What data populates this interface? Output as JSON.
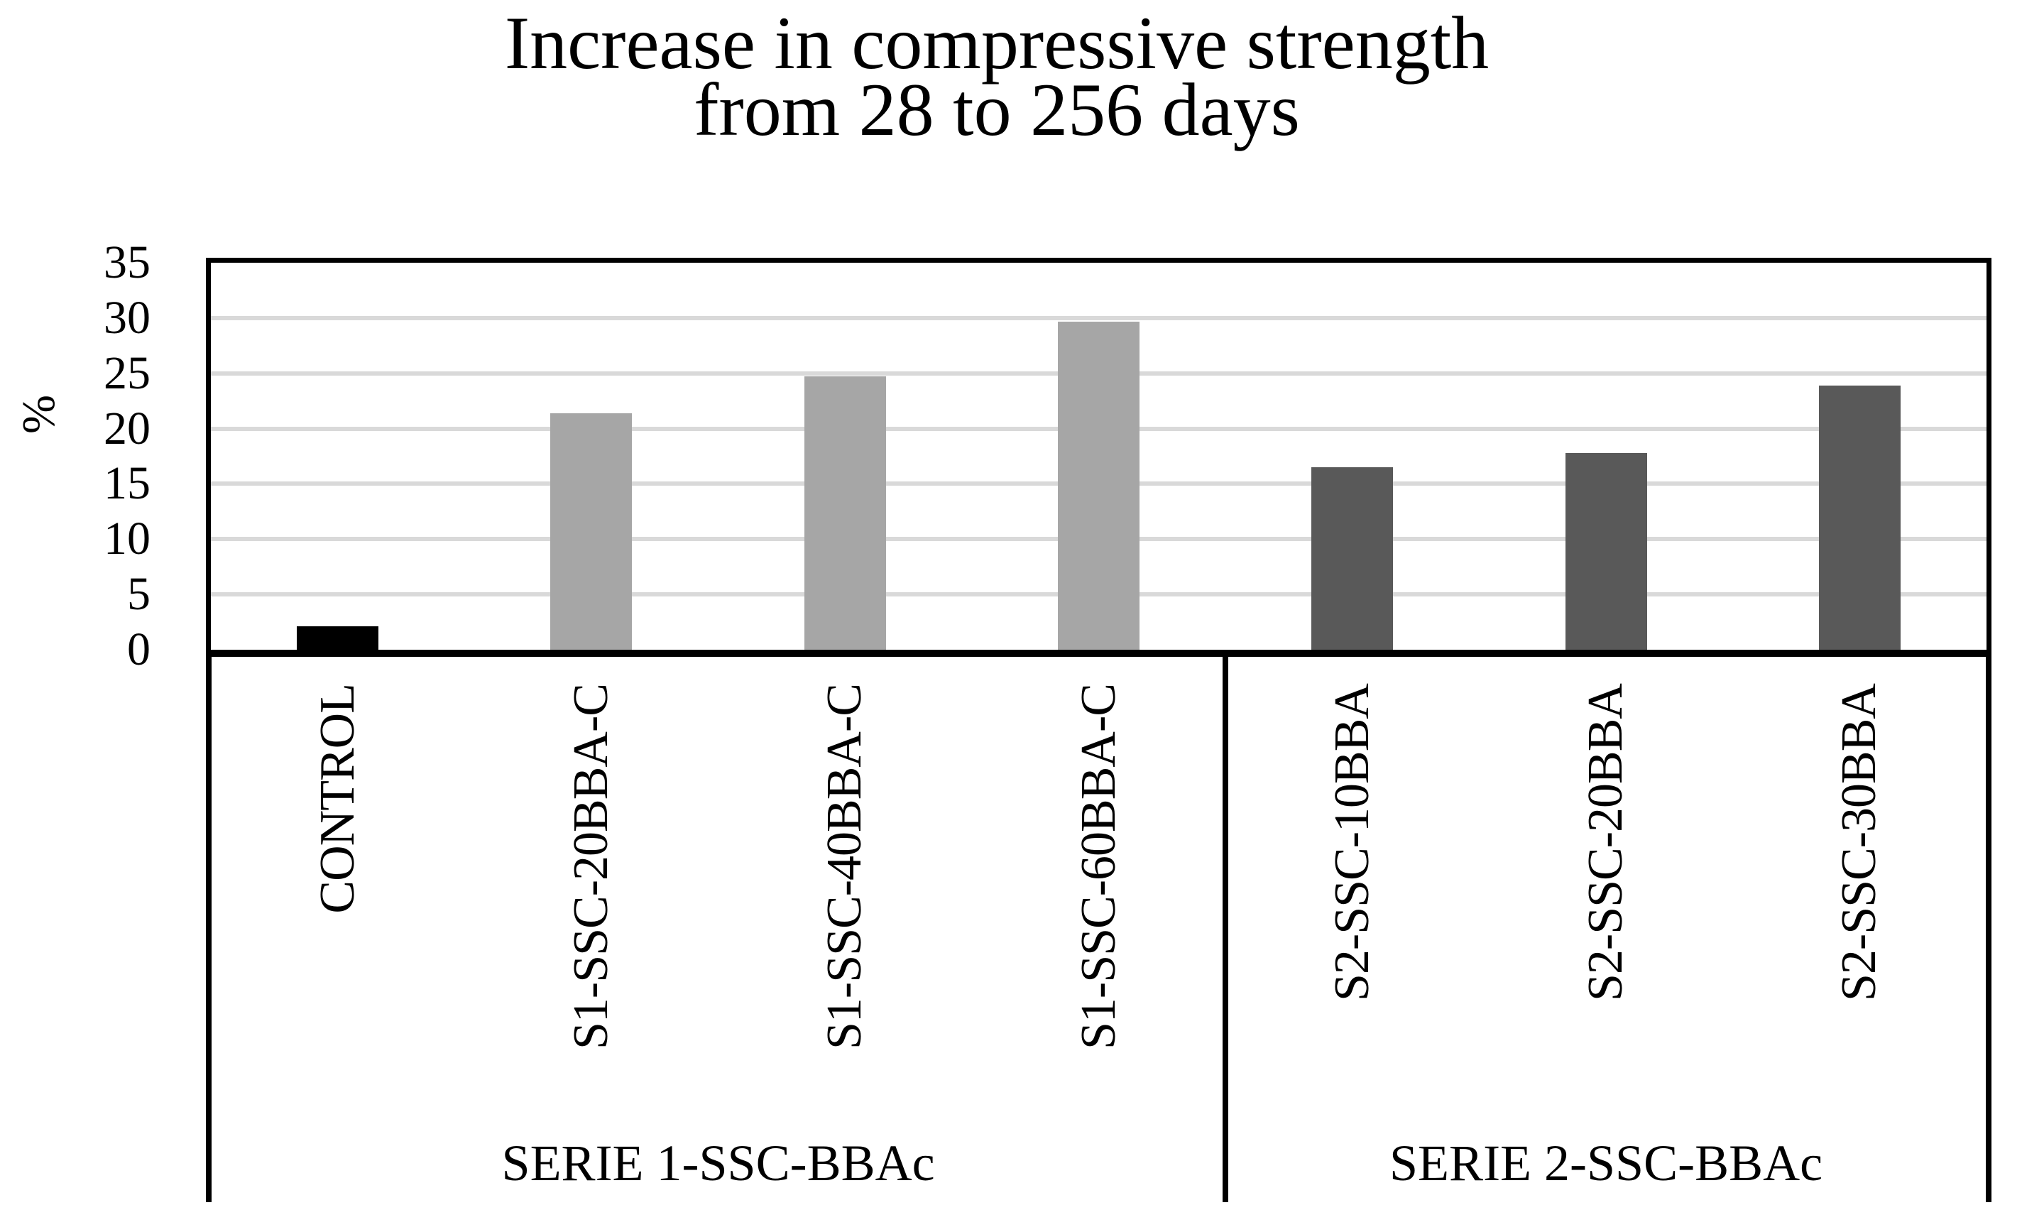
{
  "title": {
    "line1": "Increase in compressive strength",
    "line2": "from 28 to 256 days"
  },
  "y_axis": {
    "label": "%",
    "ticks": [
      35,
      30,
      25,
      20,
      15,
      10,
      5,
      0
    ]
  },
  "chart_data": {
    "type": "bar",
    "title": "Increase in compressive strength from 28 to 256 days",
    "xlabel": "",
    "ylabel": "%",
    "ylim": [
      0,
      35
    ],
    "ytick_step": 5,
    "grid": "horizontal",
    "legend": "none",
    "categories": [
      "CONTROL",
      "S1-SSC-20BBA-C",
      "S1-SSC-40BBA-C",
      "S1-SSC-60BBA-C",
      "S2-SSC-10BBA",
      "S2-SSC-20BBA",
      "S2-SSC-30BBA"
    ],
    "values": [
      2.1,
      21.4,
      24.7,
      29.7,
      16.5,
      17.8,
      23.9
    ],
    "bar_colors": [
      "#000000",
      "#a6a6a6",
      "#a6a6a6",
      "#a6a6a6",
      "#595959",
      "#595959",
      "#595959"
    ],
    "groups": [
      {
        "label": "SERIE 1-SSC-BBAc",
        "category_count": 4
      },
      {
        "label": "SERIE 2-SSC-BBAc",
        "category_count": 3
      }
    ],
    "colors": {
      "gridline": "#d9d9d9",
      "axis": "#000000",
      "control_bar": "#000000",
      "serie1_bar": "#a6a6a6",
      "serie2_bar": "#595959"
    }
  }
}
